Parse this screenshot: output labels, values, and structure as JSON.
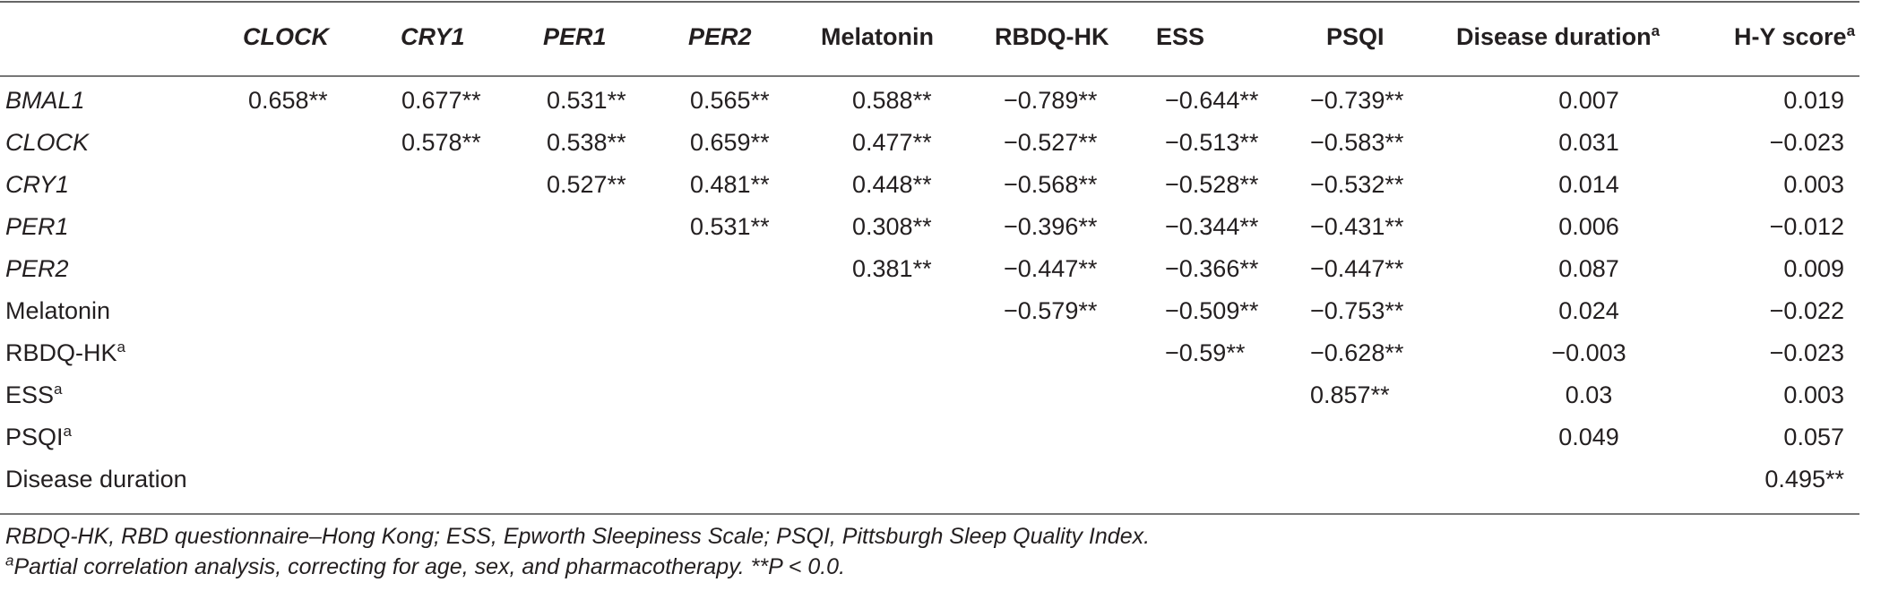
{
  "headers": [
    {
      "text": "CLOCK",
      "sup": "",
      "italic": true
    },
    {
      "text": "CRY1",
      "sup": "",
      "italic": true
    },
    {
      "text": "PER1",
      "sup": "",
      "italic": true
    },
    {
      "text": "PER2",
      "sup": "",
      "italic": true
    },
    {
      "text": "Melatonin",
      "sup": "",
      "italic": false
    },
    {
      "text": "RBDQ-HK",
      "sup": "",
      "italic": false
    },
    {
      "text": "ESS",
      "sup": "",
      "italic": false
    },
    {
      "text": "PSQI",
      "sup": "",
      "italic": false
    },
    {
      "text": "Disease duration",
      "sup": "a",
      "italic": false
    },
    {
      "text": "H-Y score",
      "sup": "a",
      "italic": false
    }
  ],
  "rows": [
    {
      "label": "BMAL1",
      "sup": "",
      "italic": true,
      "cells": [
        "0.658**",
        "0.677**",
        "0.531**",
        "0.565**",
        "0.588**",
        "−0.789**",
        "−0.644**",
        "−0.739**",
        "0.007",
        "0.019"
      ]
    },
    {
      "label": "CLOCK",
      "sup": "",
      "italic": true,
      "cells": [
        "",
        "0.578**",
        "0.538**",
        "0.659**",
        "0.477**",
        "−0.527**",
        "−0.513**",
        "−0.583**",
        "0.031",
        "−0.023"
      ]
    },
    {
      "label": "CRY1",
      "sup": "",
      "italic": true,
      "cells": [
        "",
        "",
        "0.527**",
        "0.481**",
        "0.448**",
        "−0.568**",
        "−0.528**",
        "−0.532**",
        "0.014",
        "0.003"
      ]
    },
    {
      "label": "PER1",
      "sup": "",
      "italic": true,
      "cells": [
        "",
        "",
        "",
        "0.531**",
        "0.308**",
        "−0.396**",
        "−0.344**",
        "−0.431**",
        "0.006",
        "−0.012"
      ]
    },
    {
      "label": "PER2",
      "sup": "",
      "italic": true,
      "cells": [
        "",
        "",
        "",
        "",
        "0.381**",
        "−0.447**",
        "−0.366**",
        "−0.447**",
        "0.087",
        "0.009"
      ]
    },
    {
      "label": "Melatonin",
      "sup": "",
      "italic": false,
      "cells": [
        "",
        "",
        "",
        "",
        "",
        "−0.579**",
        "−0.509**",
        "−0.753**",
        "0.024",
        "−0.022"
      ]
    },
    {
      "label": "RBDQ-HK",
      "sup": "a",
      "italic": false,
      "cells": [
        "",
        "",
        "",
        "",
        "",
        "",
        "−0.59**",
        "−0.628**",
        "−0.003",
        "−0.023"
      ]
    },
    {
      "label": "ESS",
      "sup": "a",
      "italic": false,
      "cells": [
        "",
        "",
        "",
        "",
        "",
        "",
        "",
        "0.857**",
        "0.03",
        "0.003"
      ]
    },
    {
      "label": "PSQI",
      "sup": "a",
      "italic": false,
      "cells": [
        "",
        "",
        "",
        "",
        "",
        "",
        "",
        "",
        "0.049",
        "0.057"
      ]
    },
    {
      "label": "Disease duration",
      "sup": "",
      "italic": false,
      "cells": [
        "",
        "",
        "",
        "",
        "",
        "",
        "",
        "",
        "",
        "0.495**"
      ]
    }
  ],
  "footnotes": {
    "abbreviations": "RBDQ-HK, RBD questionnaire–Hong Kong; ESS, Epworth Sleepiness Scale; PSQI, Pittsburgh Sleep Quality Index.",
    "partial_sup": "a",
    "partial": "Partial correlation analysis, correcting for age, sex, and pharmacotherapy. **P < 0.0."
  }
}
